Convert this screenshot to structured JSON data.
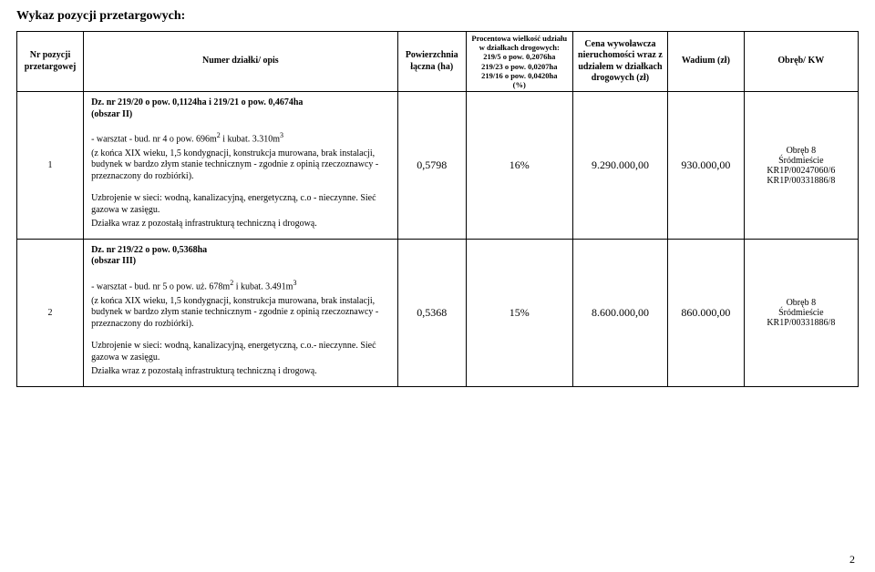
{
  "title": "Wykaz pozycji przetargowych:",
  "table": {
    "headers": {
      "nr": "Nr pozycji przetargowej",
      "opis": "Numer działki/\nopis",
      "ha": "Powierzchnia łączna (ha)",
      "pct_line1": "Procentowa wielkość udziału w działkach drogowych:",
      "pct_line2": "219/5 o pow. 0,2076ha",
      "pct_line3": "219/23 o pow. 0,0207ha",
      "pct_line4": "219/16 o pow. 0,0420ha",
      "pct_line5": "(%)",
      "cena": "Cena wywoławcza nieruchomości wraz z udziałem w działkach drogowych (zł)",
      "wad": "Wadium (zł)",
      "kw": "Obręb/ KW"
    },
    "rows": [
      {
        "nr": "1",
        "opis": {
          "l1a": "Dz. nr 219/20 o pow. 0,1124ha i 219/21 o pow. 0,4674ha",
          "l1b": "(obszar II)",
          "l2a": "- warsztat - bud. nr 4 o pow. 696m",
          "l2a_sup": "2",
          "l2a_tail": " i kubat. 3.310m",
          "l2a_sup2": "3",
          "l3": "(z końca XIX wieku, 1,5 kondygnacji, konstrukcja murowana, brak instalacji, budynek w bardzo złym stanie technicznym - zgodnie z opinią rzeczoznawcy - przeznaczony do rozbiórki).",
          "l4": "Uzbrojenie w sieci: wodną, kanalizacyjną, energetyczną, c.o - nieczynne. Sieć gazowa w zasięgu.",
          "l5": "Działka wraz z pozostałą infrastrukturą techniczną i drogową."
        },
        "ha": "0,5798",
        "pct": "16%",
        "cena": "9.290.000,00",
        "wad": "930.000,00",
        "kw1": "Obręb 8",
        "kw2": "Śródmieście",
        "kw3": "KR1P/00247060/6",
        "kw4": "KR1P/00331886/8"
      },
      {
        "nr": "2",
        "opis": {
          "l1a": "Dz. nr 219/22 o pow. 0,5368ha",
          "l1b": "(obszar III)",
          "l2a": "- warsztat - bud. nr 5 o pow. uż. 678m",
          "l2a_sup": "2",
          "l2a_tail": " i kubat. 3.491m",
          "l2a_sup2": "3",
          "l3": "(z końca XIX wieku, 1,5 kondygnacji, konstrukcja murowana, brak instalacji, budynek w bardzo złym stanie technicznym - zgodnie z opinią rzeczoznawcy - przeznaczony do rozbiórki).",
          "l4": "Uzbrojenie w sieci: wodną, kanalizacyjną, energetyczną, c.o.- nieczynne. Sieć gazowa w zasięgu.",
          "l5": "Działka wraz z pozostałą infrastrukturą techniczną i drogową."
        },
        "ha": "0,5368",
        "pct": "15%",
        "cena": "8.600.000,00",
        "wad": "860.000,00",
        "kw1": "Obręb 8",
        "kw2": "Śródmieście",
        "kw3": "KR1P/00331886/8",
        "kw4": ""
      }
    ]
  },
  "page_number": "2",
  "colors": {
    "text": "#000000",
    "bg": "#ffffff",
    "border": "#000000"
  }
}
